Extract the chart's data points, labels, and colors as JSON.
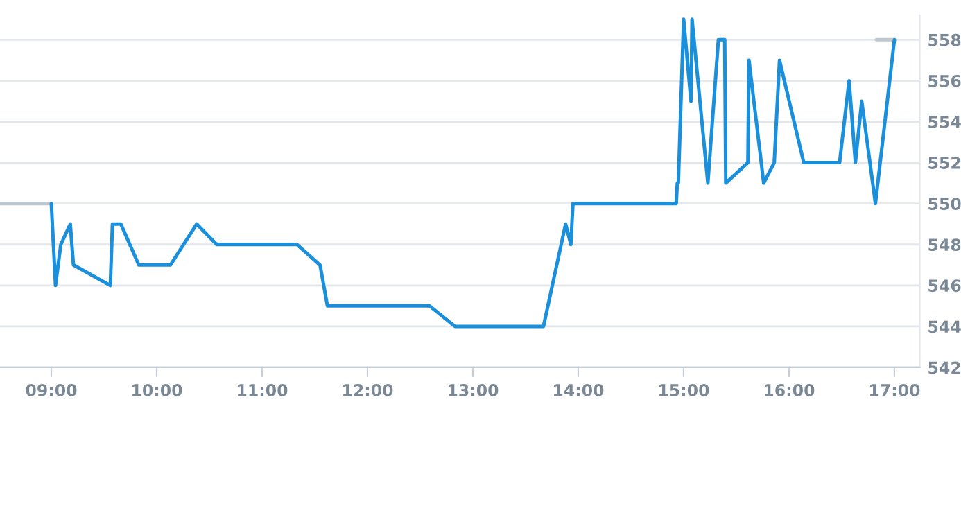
{
  "chart_data": {
    "type": "line",
    "series": [
      {
        "color": "#bfc7cf",
        "x": [
          8.513,
          9.0
        ],
        "values": [
          550,
          550
        ]
      },
      {
        "color": "#bfc7cf",
        "x": [
          16.83,
          17.0
        ],
        "values": [
          558,
          558
        ]
      },
      {
        "color": "#1a8fdb",
        "x": [
          9.0,
          9.04,
          9.09,
          9.18,
          9.21,
          9.56,
          9.58,
          9.66,
          9.83,
          10.13,
          10.38,
          10.57,
          11.33,
          11.55,
          11.62,
          12.59,
          12.83,
          13.67,
          13.88,
          13.93,
          13.95,
          14.93,
          14.94,
          14.95,
          15.0,
          15.07,
          15.08,
          15.23,
          15.33,
          15.39,
          15.4,
          15.61,
          15.62,
          15.76,
          15.86,
          15.91,
          16.14,
          16.48,
          16.57,
          16.63,
          16.69,
          16.82,
          17.0
        ],
        "values": [
          550,
          546,
          548,
          549,
          547,
          546,
          549,
          549,
          547,
          547,
          549,
          548,
          548,
          547,
          545,
          545,
          544,
          544,
          549,
          548,
          550,
          550,
          551,
          551,
          559,
          555,
          559,
          551,
          558,
          558,
          551,
          552,
          557,
          551,
          552,
          557,
          552,
          552,
          556,
          552,
          555,
          550,
          558
        ]
      }
    ],
    "xlim": [
      8.513,
      17.24
    ],
    "xticks": [
      {
        "value": 9,
        "label": "09:00"
      },
      {
        "value": 10,
        "label": "10:00"
      },
      {
        "value": 11,
        "label": "11:00"
      },
      {
        "value": 12,
        "label": "12:00"
      },
      {
        "value": 13,
        "label": "13:00"
      },
      {
        "value": 14,
        "label": "14:00"
      },
      {
        "value": 15,
        "label": "15:00"
      },
      {
        "value": 16,
        "label": "16:00"
      },
      {
        "value": 17,
        "label": "17:00"
      }
    ],
    "ylim": [
      542,
      559.2
    ],
    "yticks": [
      542,
      544,
      546,
      548,
      550,
      552,
      554,
      556,
      558
    ],
    "grid": "y",
    "legend": false
  }
}
